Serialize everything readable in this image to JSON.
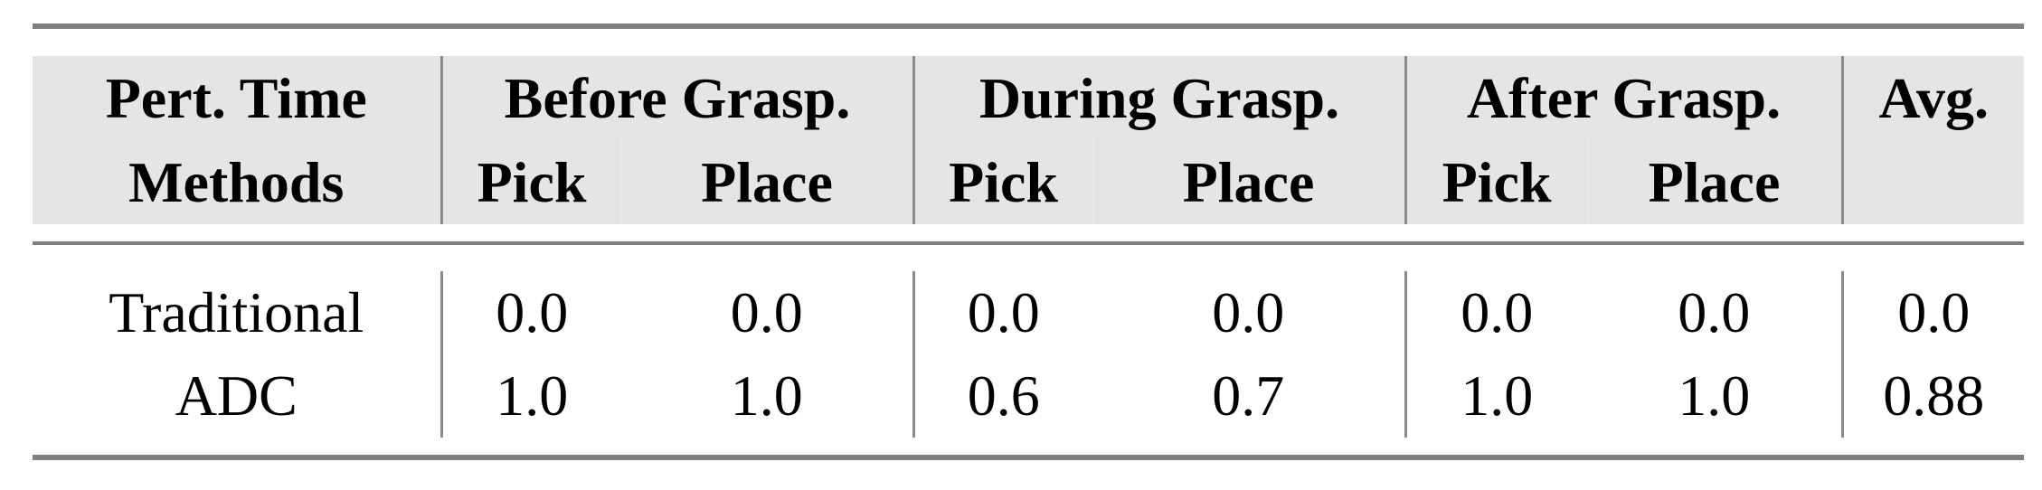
{
  "header": {
    "row1": [
      "Pert. Time",
      "Before Grasp.",
      "During Grasp.",
      "After Grasp.",
      "Avg."
    ],
    "row2": [
      "Methods",
      "Pick",
      "Place",
      "Pick",
      "Place",
      "Pick",
      "Place",
      ""
    ]
  },
  "rows": [
    {
      "method": "Traditional",
      "values": [
        "0.0",
        "0.0",
        "0.0",
        "0.0",
        "0.0",
        "0.0",
        "0.0"
      ]
    },
    {
      "method": "ADC",
      "values": [
        "1.0",
        "1.0",
        "0.6",
        "0.7",
        "1.0",
        "1.0",
        "0.88"
      ]
    }
  ],
  "colors": {
    "header_bg": "#e5e5e5",
    "rule": "#808080"
  }
}
